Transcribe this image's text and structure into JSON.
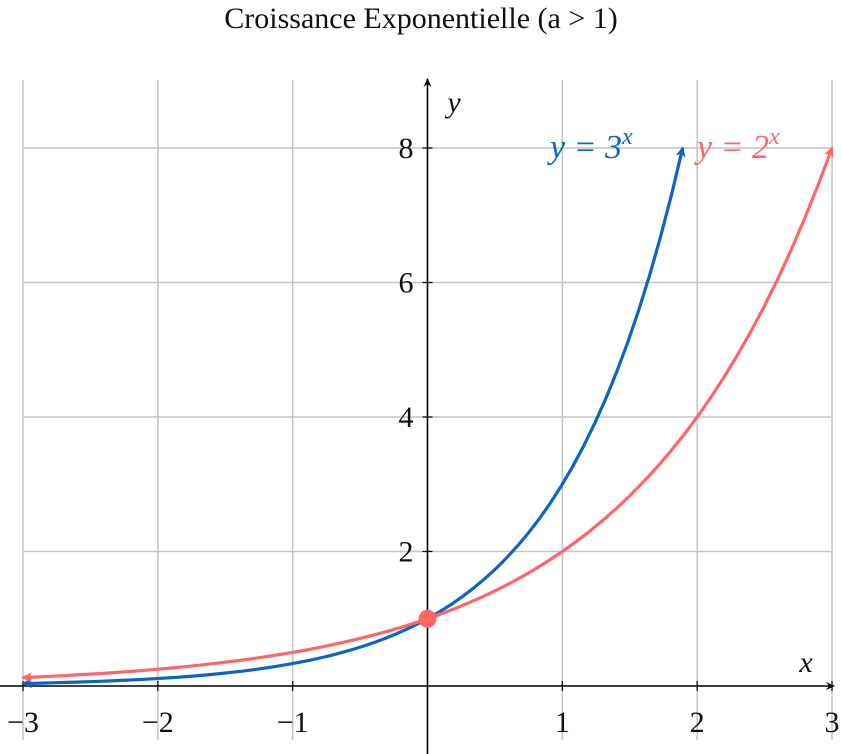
{
  "chart_data": {
    "type": "line",
    "title": "Croissance Exponentielle (a > 1)",
    "xlabel": "x",
    "ylabel": "y",
    "xlim": [
      -3,
      3
    ],
    "ylim": [
      0,
      8
    ],
    "grid": true,
    "x_ticks": [
      -3,
      -2,
      -1,
      1,
      2,
      3
    ],
    "x_tick_labels": [
      "−3",
      "−2",
      "−1",
      "1",
      "2",
      "3"
    ],
    "y_ticks": [
      2,
      4,
      6,
      8
    ],
    "y_tick_labels": [
      "2",
      "4",
      "6",
      "8"
    ],
    "series": [
      {
        "name": "y = 3^x",
        "label_base": "y = 3",
        "label_exp": "x",
        "base": 3,
        "x_range": [
          -3,
          1.893
        ],
        "color": "#0a66c2"
      },
      {
        "name": "y = 2^x",
        "label_base": "y = 2",
        "label_exp": "x",
        "base": 2,
        "x_range": [
          -3,
          3
        ],
        "color": "#ff6666"
      }
    ],
    "points": [
      {
        "x": 0,
        "y": 1,
        "color": "#ff6666"
      }
    ]
  }
}
